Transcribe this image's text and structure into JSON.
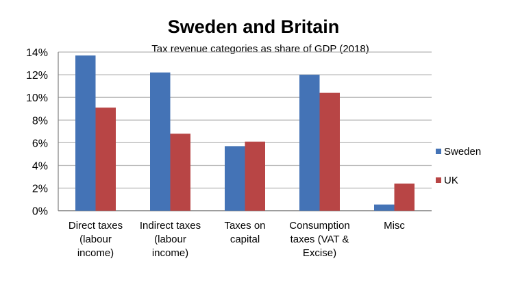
{
  "chart_data": {
    "type": "bar",
    "title": "Sweden and Britain",
    "subtitle": "Tax revenue categories  as share of GDP (2018)",
    "categories": [
      [
        "Direct taxes",
        "(labour",
        "income)"
      ],
      [
        "Indirect taxes",
        "(labour",
        "income)"
      ],
      [
        "Taxes on",
        "capital"
      ],
      [
        "Consumption",
        "taxes (VAT &",
        "Excise)"
      ],
      [
        "Misc"
      ]
    ],
    "series": [
      {
        "name": "Sweden",
        "color": "#4473b6",
        "values": [
          13.7,
          12.2,
          5.7,
          12.0,
          0.55
        ]
      },
      {
        "name": "UK",
        "color": "#b84545",
        "values": [
          9.1,
          6.8,
          6.1,
          10.4,
          2.4
        ]
      }
    ],
    "yticks": [
      "0%",
      "2%",
      "4%",
      "6%",
      "8%",
      "10%",
      "12%",
      "14%"
    ],
    "ylim": [
      0,
      14
    ],
    "grid": true,
    "legend": "right"
  }
}
